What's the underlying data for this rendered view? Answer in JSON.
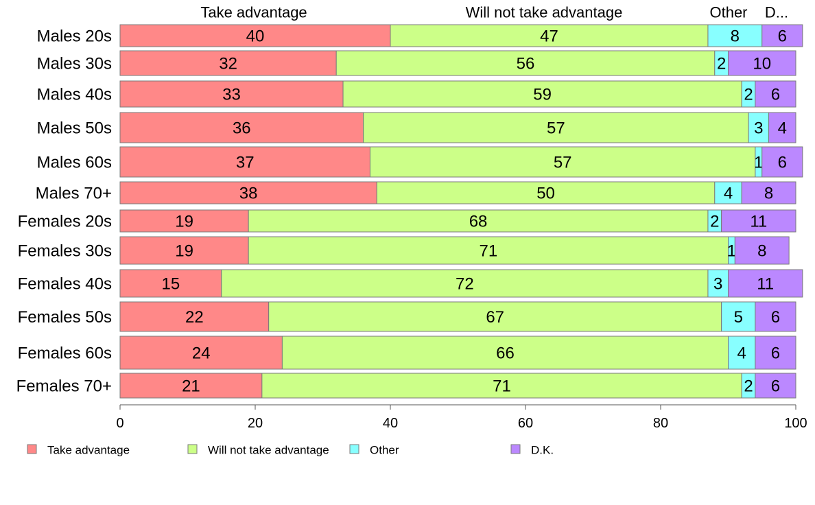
{
  "chart_data": {
    "type": "bar",
    "orientation": "horizontal",
    "stacked": true,
    "categories": [
      "Males 20s",
      "Males 30s",
      "Males 40s",
      "Males 50s",
      "Males 60s",
      "Males 70+",
      "Females 20s",
      "Females 30s",
      "Females 40s",
      "Females 50s",
      "Females 60s",
      "Females 70+"
    ],
    "series": [
      {
        "name": "Take advantage",
        "color": "#ff8888",
        "values": [
          40,
          32,
          33,
          36,
          37,
          38,
          19,
          19,
          15,
          22,
          24,
          21
        ]
      },
      {
        "name": "Will not take advantage",
        "color": "#ccff88",
        "values": [
          47,
          56,
          59,
          57,
          57,
          50,
          68,
          71,
          72,
          67,
          66,
          71
        ]
      },
      {
        "name": "Other",
        "color": "#88ffff",
        "values": [
          8,
          2,
          2,
          3,
          1,
          4,
          2,
          1,
          3,
          5,
          4,
          2
        ]
      },
      {
        "name": "D.K.",
        "color": "#bb88ff",
        "values": [
          6,
          10,
          6,
          4,
          6,
          8,
          11,
          8,
          11,
          6,
          6,
          6
        ]
      }
    ],
    "segment_headers": [
      "Take advantage",
      "Will not take advantage",
      "Other",
      "D..."
    ],
    "xlim": [
      0,
      100
    ],
    "xticks": [
      "0",
      "20",
      "40",
      "60",
      "80",
      "100"
    ],
    "title": "",
    "xlabel": "",
    "ylabel": "",
    "legend": "bottom",
    "grid": false
  }
}
